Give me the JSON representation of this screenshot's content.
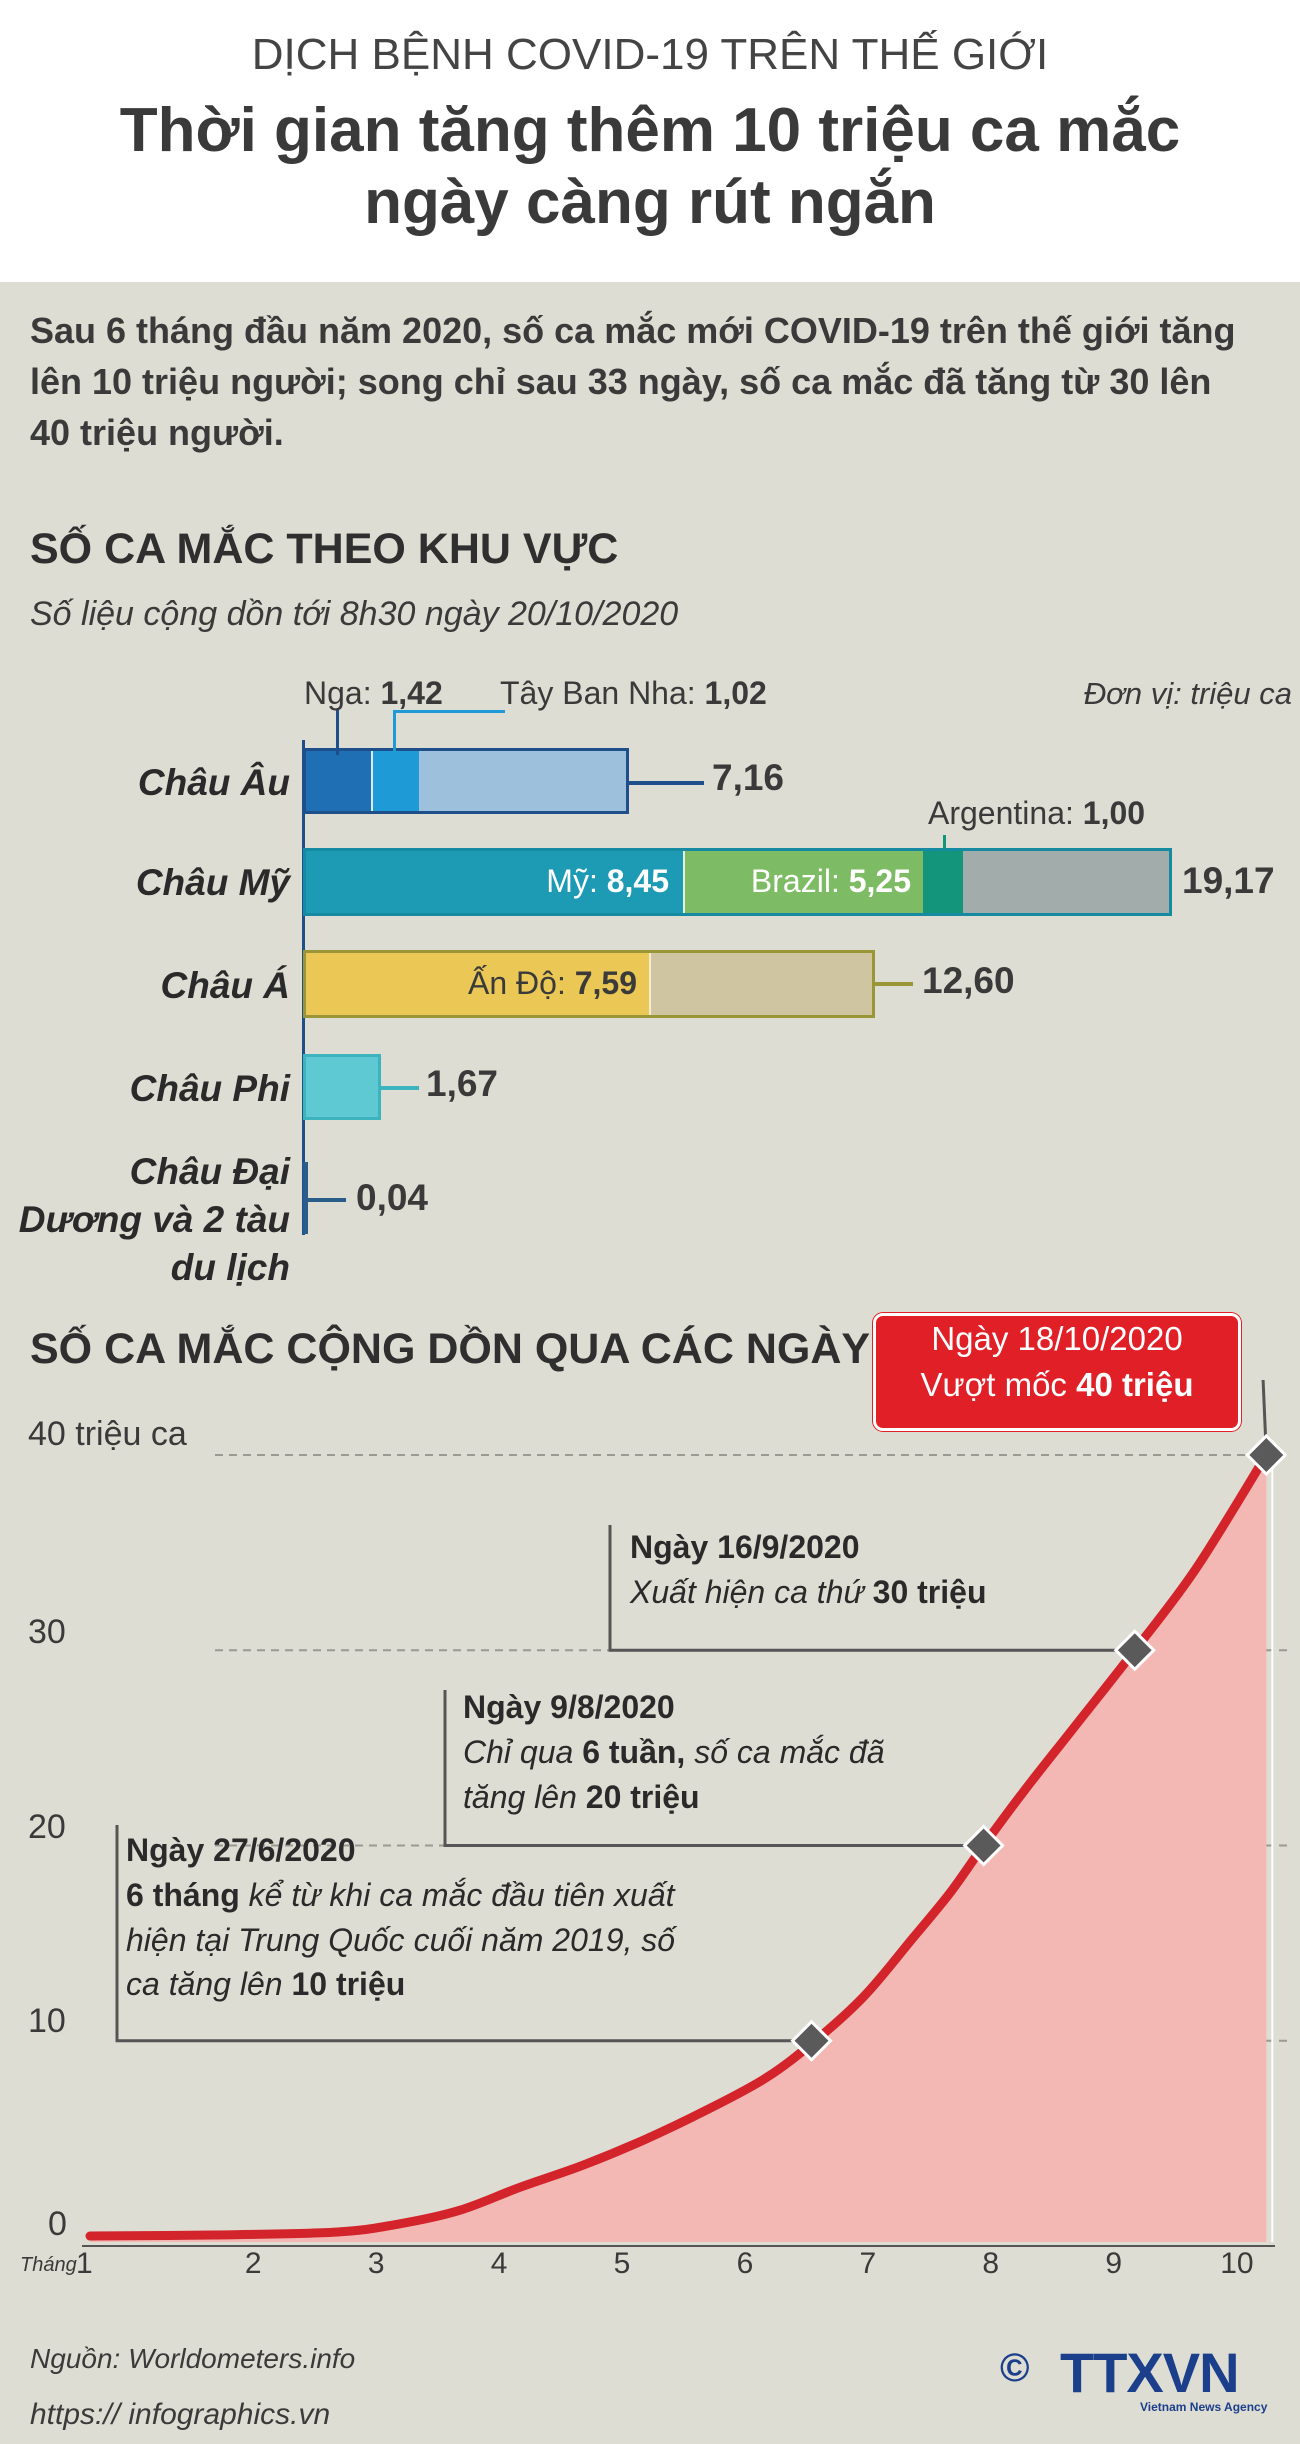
{
  "header": {
    "supertitle": "DỊCH BỆNH COVID-19 TRÊN THẾ GIỚI",
    "title_line1": "Thời gian tăng thêm 10 triệu ca mắc",
    "title_line2": "ngày càng rút ngắn"
  },
  "intro": "Sau 6 tháng đầu năm 2020, số ca mắc mới COVID-19 trên thế giới tăng lên 10 triệu người; song chỉ sau 33 ngày, số ca mắc đã tăng từ 30 lên 40 triệu người.",
  "region_section": {
    "title": "SỐ CA MẮC THEO KHU VỰC",
    "subtitle": "Số liệu cộng dồn tới 8h30 ngày 20/10/2020",
    "unit": "Đơn vị: triệu ca"
  },
  "timeline_section": {
    "title": "SỐ CA MẮC CỘNG DỒN QUA CÁC NGÀY"
  },
  "chart_data": [
    {
      "type": "bar",
      "orientation": "horizontal-stacked",
      "categories": [
        "Châu Âu",
        "Châu Mỹ",
        "Châu Á",
        "Châu Phi",
        "Châu Đại Dương và 2 tàu du lịch"
      ],
      "totals": [
        7.16,
        19.17,
        12.6,
        1.67,
        0.04
      ],
      "total_labels": [
        "7,16",
        "19,17",
        "12,60",
        "1,67",
        "0,04"
      ],
      "breakdown": {
        "Châu Âu": [
          {
            "name": "Nga",
            "value": 1.42,
            "label": "1,42",
            "color": "#1f6fb5"
          },
          {
            "name": "Tây Ban Nha",
            "value": 1.02,
            "label": "1,02",
            "color": "#1e9ad6"
          },
          {
            "name": "",
            "value": 4.72,
            "color": "#9dc0dd"
          }
        ],
        "Châu Mỹ": [
          {
            "name": "Mỹ",
            "value": 8.45,
            "label": "8,45",
            "color": "#1d9ab4"
          },
          {
            "name": "Brazil",
            "value": 5.25,
            "label": "5,25",
            "color": "#7dbc64"
          },
          {
            "name": "Argentina",
            "value": 1.0,
            "label": "1,00",
            "color": "#13957b"
          },
          {
            "name": "",
            "value": 4.47,
            "color": "#a2acab"
          }
        ],
        "Châu Á": [
          {
            "name": "Ấn Độ",
            "value": 7.59,
            "label": "7,59",
            "color": "#ebc756"
          },
          {
            "name": "",
            "value": 5.01,
            "color": "#cfc5a0"
          }
        ],
        "Châu Phi": [
          {
            "name": "",
            "value": 1.67,
            "color": "#5ec9d3"
          }
        ],
        "Châu Đại Dương và 2 tàu du lịch": [
          {
            "name": "",
            "value": 0.04,
            "color": "#2a5d8a"
          }
        ]
      },
      "colors": {
        "europe_border": "#1f4f8a",
        "americas_border": "#168aa0",
        "asia_border": "#9a9637",
        "africa_border": "#3cb3be",
        "oceania": "#2a5d8a"
      }
    },
    {
      "type": "area",
      "title": "SỐ CA MẮC CỘNG DỒN QUA CÁC NGÀY",
      "xlabel": "Tháng",
      "ylabel_top": "40 triệu ca",
      "x_ticks": [
        "1",
        "2",
        "3",
        "4",
        "5",
        "6",
        "7",
        "8",
        "9",
        "10"
      ],
      "y_ticks": [
        "0",
        "10",
        "20",
        "30",
        "40 triệu ca"
      ],
      "y_tick_values": [
        0,
        10,
        20,
        30,
        40
      ],
      "xlim": [
        1,
        10.6
      ],
      "ylim": [
        0,
        40
      ],
      "x": [
        1,
        2,
        3,
        3.5,
        4,
        4.5,
        5,
        5.5,
        6,
        6.5,
        6.9,
        7.3,
        7.7,
        8.0,
        8.27,
        8.6,
        9.0,
        9.5,
        10.0,
        10.57
      ],
      "y": [
        0,
        0.05,
        0.2,
        0.6,
        1.3,
        2.5,
        3.6,
        4.9,
        6.4,
        8.1,
        10.0,
        12.3,
        15.3,
        17.6,
        20.0,
        22.8,
        26.0,
        30.0,
        34.2,
        40.0
      ],
      "line_color": "#d3232b",
      "fill_color": "#f4b8b4",
      "milestones": [
        {
          "x": 6.87,
          "y": 10,
          "date": "Ngày 27/6/2020",
          "note_pre": "",
          "note_bold1": "6 tháng",
          "note_mid": " kể từ khi ca mắc đầu tiên xuất hiện tại Trung Quốc cuối năm 2019, số ca tăng lên ",
          "note_bold2": "10 triệu"
        },
        {
          "x": 8.27,
          "y": 20,
          "date": "Ngày 9/8/2020",
          "note_pre": "Chỉ qua ",
          "note_bold1": "6 tuần,",
          "note_mid": " số ca mắc đã tăng lên ",
          "note_bold2": "20 triệu"
        },
        {
          "x": 9.5,
          "y": 30,
          "date": "Ngày 16/9/2020",
          "note_pre": "Xuất hiện ca thứ ",
          "note_bold1": "30 triệu",
          "note_mid": "",
          "note_bold2": ""
        },
        {
          "x": 10.57,
          "y": 40,
          "date": "Ngày 18/10/2020",
          "note_pre": "Vượt mốc ",
          "note_bold1": "40 triệu",
          "note_mid": "",
          "note_bold2": ""
        }
      ]
    }
  ],
  "footer": {
    "source": "Nguồn: Worldometers.info",
    "url": "https:// infographics.vn",
    "copyright": "©",
    "logo_text": "TTXVN",
    "logo_sub": "Vietnam News Agency"
  }
}
